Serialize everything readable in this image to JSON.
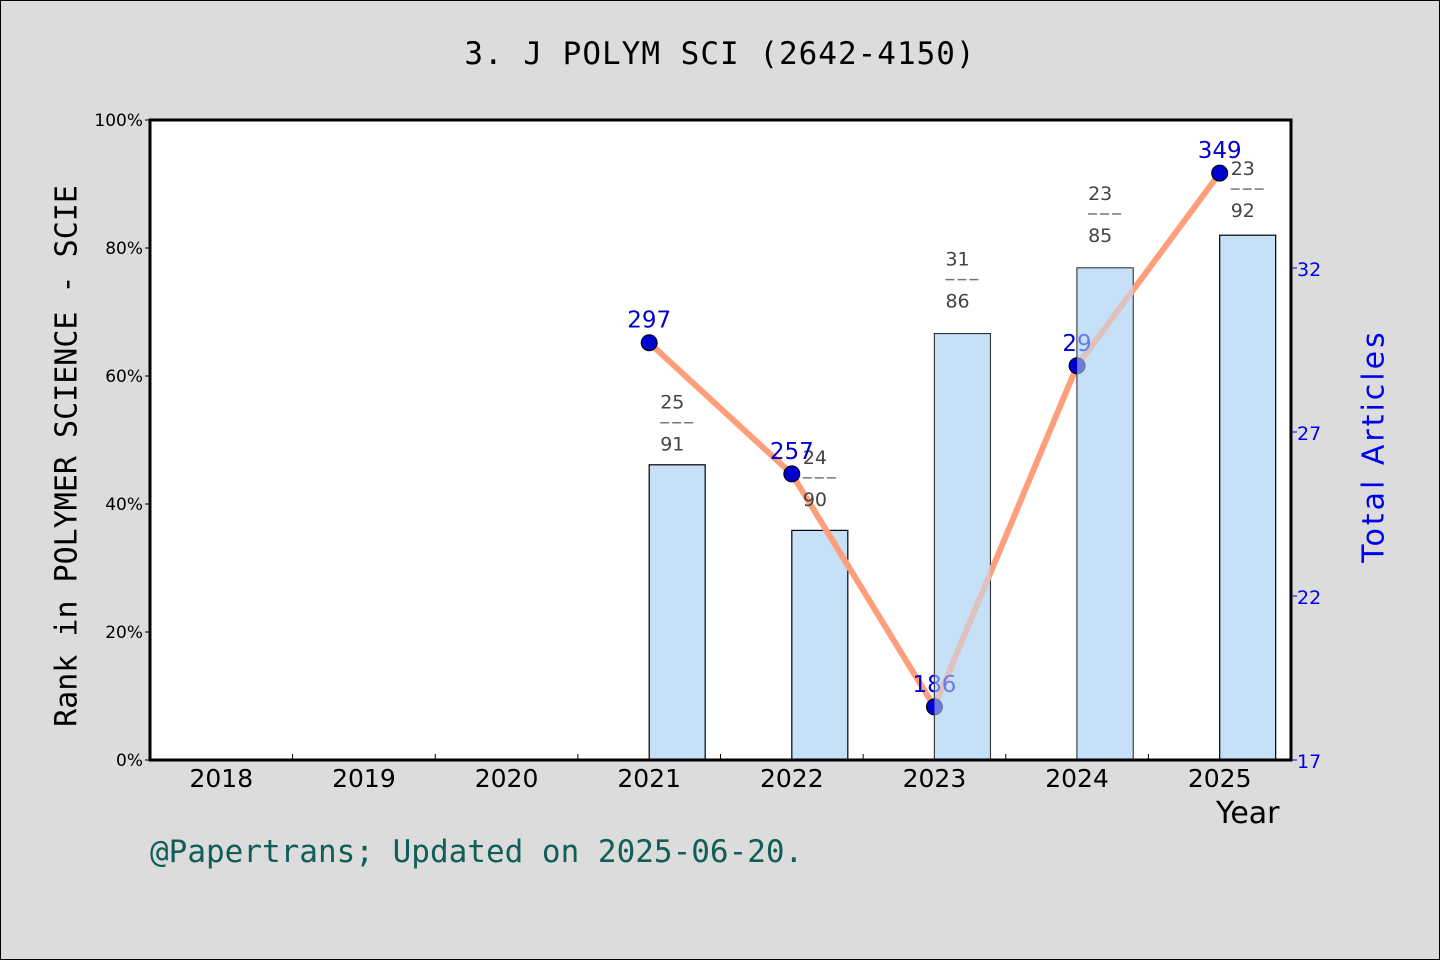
{
  "chart_data": {
    "type": "bar+line",
    "title": "3. J POLYM SCI (2642-4150)",
    "xlabel": "Year",
    "ylabel_left": "Rank in POLYMER SCIENCE - SCIE",
    "ylabel_right": "Total Articles",
    "categories": [
      "2018",
      "2019",
      "2020",
      "2021",
      "2022",
      "2023",
      "2024",
      "2025"
    ],
    "left_axis": {
      "ticks": [
        "0%",
        "20%",
        "40%",
        "60%",
        "80%",
        "100%"
      ],
      "ylim": [
        0,
        100
      ]
    },
    "right_axis": {
      "ticks": [
        "17",
        "22",
        "27",
        "32"
      ],
      "ylim": [
        17,
        36.5
      ]
    },
    "series": [
      {
        "name": "Total Articles",
        "type": "bar",
        "axis": "right",
        "color": "#c5e0f7",
        "values": [
          null,
          null,
          null,
          26,
          24,
          30,
          32,
          33
        ]
      },
      {
        "name": "Rank percentile",
        "type": "line",
        "axis": "left",
        "color": "#ff9e7a",
        "values": [
          null,
          null,
          null,
          65.2,
          44.7,
          8.3,
          61.6,
          91.7
        ],
        "point_labels": [
          null,
          null,
          null,
          "297",
          "257",
          "186",
          "29",
          "349"
        ]
      }
    ],
    "rank_annotations": [
      {
        "year": "2021",
        "rank": "25",
        "total": "91"
      },
      {
        "year": "2022",
        "rank": "24",
        "total": "90"
      },
      {
        "year": "2023",
        "rank": "31",
        "total": "86"
      },
      {
        "year": "2024",
        "rank": "23",
        "total": "85"
      },
      {
        "year": "2025",
        "rank": "23",
        "total": "92"
      }
    ],
    "grid": false,
    "legend": "none"
  },
  "footer": "@Papertrans; Updated on 2025-06-20.",
  "colors": {
    "background": "#dcdcdc",
    "plot_bg": "#ffffff",
    "bar": "#c5e0f7",
    "line": "#ff9e7a",
    "point": "#0000cc",
    "right_axis": "#0000ee",
    "footer": "#115e56"
  }
}
